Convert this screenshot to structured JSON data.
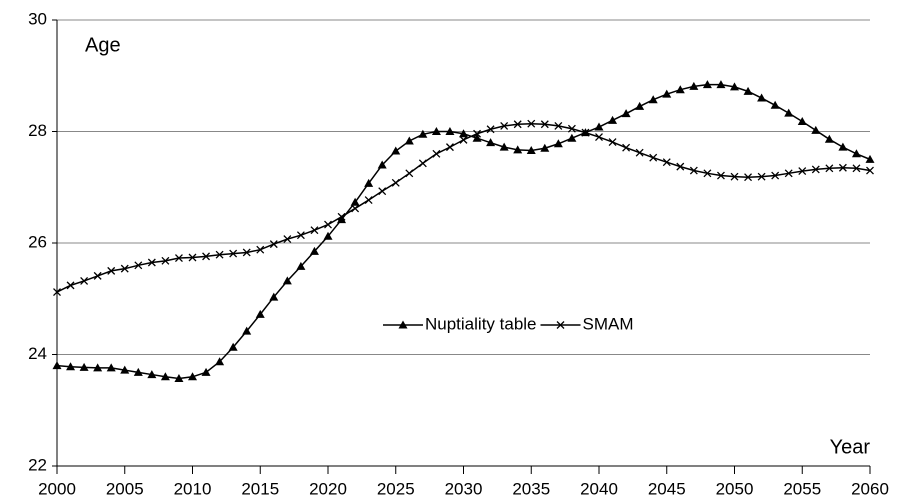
{
  "chart_data": {
    "type": "line",
    "y_label": "Age",
    "x_label": "Year",
    "x": [
      2000,
      2001,
      2002,
      2003,
      2004,
      2005,
      2006,
      2007,
      2008,
      2009,
      2010,
      2011,
      2012,
      2013,
      2014,
      2015,
      2016,
      2017,
      2018,
      2019,
      2020,
      2021,
      2022,
      2023,
      2024,
      2025,
      2026,
      2027,
      2028,
      2029,
      2030,
      2031,
      2032,
      2033,
      2034,
      2035,
      2036,
      2037,
      2038,
      2039,
      2040,
      2041,
      2042,
      2043,
      2044,
      2045,
      2046,
      2047,
      2048,
      2049,
      2050,
      2051,
      2052,
      2053,
      2054,
      2055,
      2056,
      2057,
      2058,
      2059,
      2060
    ],
    "series": [
      {
        "name": "Nuptiality table",
        "color": "#000000",
        "marker": "triangle",
        "values": [
          23.8,
          23.78,
          23.77,
          23.76,
          23.76,
          23.72,
          23.68,
          23.64,
          23.6,
          23.57,
          23.6,
          23.68,
          23.87,
          24.13,
          24.42,
          24.72,
          25.03,
          25.32,
          25.58,
          25.85,
          26.12,
          26.42,
          26.73,
          27.07,
          27.4,
          27.65,
          27.83,
          27.95,
          28.0,
          28.0,
          27.96,
          27.88,
          27.8,
          27.72,
          27.67,
          27.66,
          27.7,
          27.78,
          27.88,
          27.98,
          28.08,
          28.2,
          28.32,
          28.45,
          28.57,
          28.67,
          28.75,
          28.81,
          28.84,
          28.84,
          28.8,
          28.72,
          28.6,
          28.47,
          28.33,
          28.18,
          28.02,
          27.86,
          27.72,
          27.6,
          27.5
        ]
      },
      {
        "name": "SMAM",
        "color": "#000000",
        "marker": "x",
        "values": [
          25.12,
          25.24,
          25.32,
          25.41,
          25.5,
          25.54,
          25.6,
          25.65,
          25.68,
          25.73,
          25.74,
          25.76,
          25.79,
          25.81,
          25.83,
          25.88,
          25.98,
          26.07,
          26.14,
          26.23,
          26.33,
          26.47,
          26.62,
          26.77,
          26.93,
          27.08,
          27.25,
          27.43,
          27.6,
          27.72,
          27.85,
          27.96,
          28.04,
          28.1,
          28.13,
          28.14,
          28.13,
          28.1,
          28.05,
          27.98,
          27.9,
          27.81,
          27.71,
          27.62,
          27.53,
          27.45,
          27.37,
          27.3,
          27.25,
          27.21,
          27.19,
          27.18,
          27.19,
          27.21,
          27.25,
          27.29,
          27.32,
          27.34,
          27.35,
          27.34,
          27.3
        ]
      }
    ],
    "xlim": [
      2000,
      2060
    ],
    "xticks": [
      2000,
      2005,
      2010,
      2015,
      2020,
      2025,
      2030,
      2035,
      2040,
      2045,
      2050,
      2055,
      2060
    ],
    "ylim": [
      22,
      30
    ],
    "yticks": [
      22,
      24,
      26,
      28,
      30
    ],
    "grid": true
  }
}
